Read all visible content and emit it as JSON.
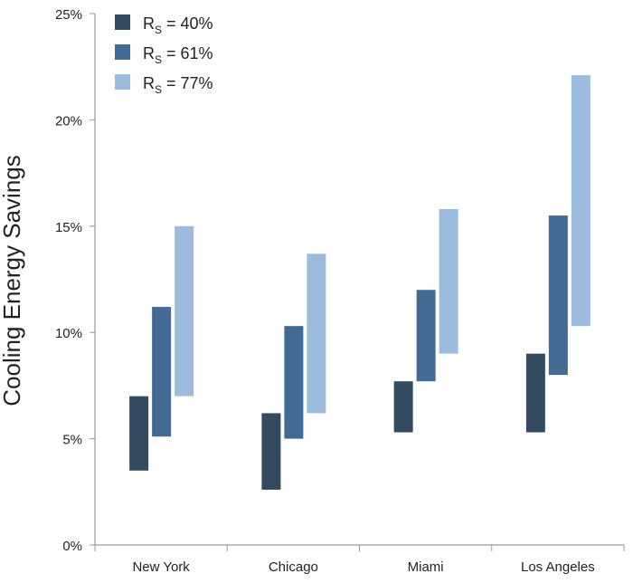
{
  "chart_data": {
    "type": "bar",
    "subtype": "floating-range",
    "title": "",
    "xlabel": "",
    "ylabel": "Cooling Energy Savings",
    "ylim": [
      0,
      25
    ],
    "yticks": [
      "0%",
      "5%",
      "10%",
      "15%",
      "20%",
      "25%"
    ],
    "ytick_values": [
      0,
      5,
      10,
      15,
      20,
      25
    ],
    "categories": [
      "New York",
      "Chicago",
      "Miami",
      "Los Angeles"
    ],
    "legend_position": "top-left",
    "series": [
      {
        "name": "R_S = 40%",
        "label_base": "R",
        "label_sub": "S",
        "label_rest": " = 40%",
        "color": "#344a60",
        "low": [
          3.5,
          2.6,
          5.3,
          5.3
        ],
        "high": [
          7.0,
          6.2,
          7.7,
          9.0
        ]
      },
      {
        "name": "R_S = 61%",
        "label_base": "R",
        "label_sub": "S",
        "label_rest": " = 61%",
        "color": "#436a93",
        "low": [
          5.1,
          5.0,
          7.7,
          8.0
        ],
        "high": [
          11.2,
          10.3,
          12.0,
          15.5
        ]
      },
      {
        "name": "R_S = 77%",
        "label_base": "R",
        "label_sub": "S",
        "label_rest": " = 77%",
        "color": "#9bbcdd",
        "low": [
          7.0,
          6.2,
          9.0,
          10.3
        ],
        "high": [
          15.0,
          13.7,
          15.8,
          22.1
        ]
      }
    ]
  }
}
